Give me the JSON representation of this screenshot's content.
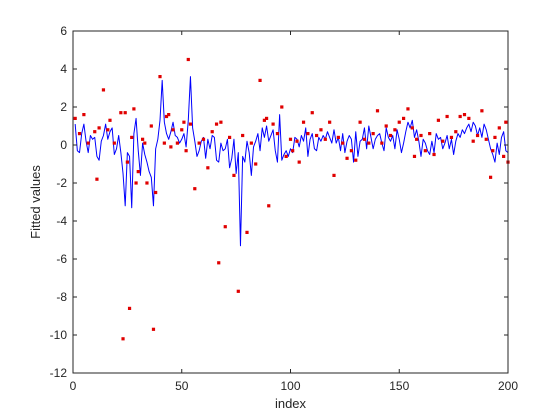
{
  "chart_data": {
    "type": "scatter",
    "xlabel": "index",
    "ylabel": "Fitted values",
    "xlim": [
      0,
      200
    ],
    "ylim": [
      -12,
      6
    ],
    "xticks": [
      0,
      50,
      100,
      150,
      200
    ],
    "yticks": [
      -12,
      -10,
      -8,
      -6,
      -4,
      -2,
      0,
      2,
      4,
      6
    ],
    "xtick_labels": [
      "0",
      "50",
      "100",
      "150",
      "200"
    ],
    "ytick_labels": [
      "-12",
      "-10",
      "-8",
      "-6",
      "-4",
      "-2",
      "0",
      "2",
      "4",
      "6"
    ],
    "grid": false,
    "box": true,
    "series": [
      {
        "style": "line",
        "color": "#0000ff",
        "x": [
          1,
          2,
          3,
          4,
          5,
          6,
          7,
          8,
          9,
          10,
          11,
          12,
          13,
          14,
          15,
          16,
          17,
          18,
          19,
          20,
          21,
          22,
          23,
          24,
          25,
          26,
          27,
          28,
          29,
          30,
          31,
          32,
          33,
          34,
          35,
          36,
          37,
          38,
          39,
          40,
          41,
          42,
          43,
          44,
          45,
          46,
          47,
          48,
          49,
          50,
          51,
          52,
          53,
          54,
          55,
          56,
          57,
          58,
          59,
          60,
          61,
          62,
          63,
          64,
          65,
          66,
          67,
          68,
          69,
          70,
          71,
          72,
          73,
          74,
          75,
          76,
          77,
          78,
          79,
          80,
          81,
          82,
          83,
          84,
          85,
          86,
          87,
          88,
          89,
          90,
          91,
          92,
          93,
          94,
          95,
          96,
          97,
          98,
          99,
          100,
          101,
          102,
          103,
          104,
          105,
          106,
          107,
          108,
          109,
          110,
          111,
          112,
          113,
          114,
          115,
          116,
          117,
          118,
          119,
          120,
          121,
          122,
          123,
          124,
          125,
          126,
          127,
          128,
          129,
          130,
          131,
          132,
          133,
          134,
          135,
          136,
          137,
          138,
          139,
          140,
          141,
          142,
          143,
          144,
          145,
          146,
          147,
          148,
          149,
          150,
          151,
          152,
          153,
          154,
          155,
          156,
          157,
          158,
          159,
          160,
          161,
          162,
          163,
          164,
          165,
          166,
          167,
          168,
          169,
          170,
          171,
          172,
          173,
          174,
          175,
          176,
          177,
          178,
          179,
          180,
          181,
          182,
          183,
          184,
          185,
          186,
          187,
          188,
          189,
          190,
          191,
          192,
          193,
          194,
          195,
          196,
          197,
          198,
          199,
          200
        ],
        "y": [
          1.1,
          -0.3,
          -0.4,
          0.6,
          1.1,
          0.2,
          -0.4,
          0.5,
          0.3,
          0.4,
          -0.6,
          -0.8,
          0.2,
          0.5,
          1.1,
          0.3,
          0.7,
          0.9,
          -0.5,
          -0.2,
          0.5,
          -0.4,
          -1.5,
          -3.2,
          -0.4,
          -0.6,
          -3.3,
          0.6,
          1.4,
          -0.3,
          -1.6,
          0.1,
          -0.5,
          -0.9,
          -1.4,
          -1.7,
          -3.2,
          -0.2,
          0.3,
          1.3,
          3.4,
          1.2,
          0.6,
          0.3,
          0.7,
          1.2,
          0.5,
          0.4,
          0.1,
          0.3,
          0.6,
          -0.1,
          1.3,
          3.6,
          0.9,
          0.2,
          -0.6,
          -0.3,
          0.2,
          0.4,
          -0.7,
          0.3,
          -0.2,
          0.5,
          0.4,
          -0.8,
          -0.9,
          0.1,
          -0.3,
          -0.2,
          0.3,
          -1.2,
          -0.7,
          0.3,
          -1.5,
          -0.4,
          -5.3,
          -0.6,
          -0.9,
          0.2,
          -0.4,
          -1.6,
          -0.1,
          0.2,
          0.6,
          -0.3,
          0.9,
          0.4,
          1.0,
          0.2,
          0.5,
          0.8,
          -0.3,
          -0.9,
          1.6,
          -0.8,
          -0.5,
          -0.3,
          -0.6,
          -0.2,
          -0.4,
          0.4,
          0.3,
          -0.1,
          0.5,
          0.2,
          0.9,
          -0.6,
          0.3,
          0.6,
          -0.2,
          -0.3,
          0.4,
          0.2,
          0.5,
          0.3,
          0.7,
          0.4,
          0.1,
          0.8,
          0.1,
          0.4,
          -0.3,
          0.6,
          -0.4,
          0.2,
          0.5,
          0.3,
          -0.9,
          0.7,
          -0.6,
          0.2,
          0.3,
          0.9,
          -0.2,
          1.0,
          0.4,
          -0.2,
          0.3,
          0.5,
          0.6,
          0.1,
          -0.3,
          0.9,
          0.4,
          0.2,
          0.5,
          -0.2,
          0.8,
          0.3,
          -0.4,
          0.1,
          0.7,
          1.2,
          0.9,
          1.3,
          0.4,
          0.8,
          0.2,
          -0.6,
          0.3,
          0.1,
          -0.3,
          -0.5,
          0.2,
          -0.4,
          0.6,
          0.3,
          0.4,
          -0.2,
          0.1,
          0.5,
          -0.2,
          0.3,
          -0.5,
          0.2,
          0.6,
          0.4,
          0.8,
          0.6,
          0.9,
          1.1,
          0.7,
          1.2,
          1.0,
          0.5,
          0.9,
          0.4,
          1.1,
          0.8,
          0.3,
          -0.2,
          -0.5,
          -0.9,
          0.1,
          -0.5,
          0.4,
          0.7,
          -0.3,
          -0.4
        ],
        "marker": "none"
      },
      {
        "style": "markers",
        "color": "#e00000",
        "marker": "square",
        "x": [
          1,
          3,
          5,
          7,
          10,
          11,
          12,
          14,
          16,
          17,
          19,
          22,
          23,
          24,
          25,
          26,
          27,
          28,
          29,
          30,
          32,
          33,
          34,
          36,
          37,
          38,
          40,
          42,
          43,
          44,
          45,
          46,
          48,
          50,
          51,
          52,
          53,
          54,
          56,
          58,
          60,
          62,
          64,
          66,
          67,
          68,
          70,
          72,
          74,
          76,
          78,
          80,
          82,
          84,
          86,
          88,
          89,
          90,
          92,
          94,
          96,
          98,
          100,
          101,
          103,
          104,
          106,
          108,
          110,
          112,
          114,
          116,
          118,
          120,
          122,
          124,
          126,
          128,
          130,
          132,
          134,
          136,
          138,
          140,
          142,
          144,
          146,
          148,
          150,
          152,
          154,
          156,
          157,
          158,
          160,
          162,
          164,
          166,
          168,
          170,
          172,
          174,
          176,
          178,
          180,
          182,
          184,
          186,
          188,
          190,
          192,
          193,
          194,
          196,
          198,
          199,
          200
        ],
        "y": [
          1.4,
          0.6,
          1.6,
          0.1,
          0.7,
          -1.8,
          0.9,
          2.9,
          0.8,
          1.3,
          0.1,
          1.7,
          -10.2,
          1.7,
          -0.9,
          -8.6,
          0.4,
          1.9,
          -2.0,
          -1.4,
          0.3,
          0.1,
          -2.0,
          1.0,
          -9.7,
          -2.5,
          3.6,
          0.1,
          1.5,
          1.6,
          -0.1,
          0.8,
          0.1,
          0.8,
          1.2,
          -0.3,
          4.5,
          1.1,
          -2.3,
          0.1,
          0.3,
          -1.2,
          0.7,
          1.1,
          -6.2,
          1.2,
          -4.3,
          0.4,
          -1.6,
          -7.7,
          0.5,
          -4.6,
          0.1,
          -1.0,
          3.4,
          1.3,
          1.4,
          -3.2,
          1.1,
          0.6,
          2.0,
          -0.6,
          0.3,
          -0.3,
          0.2,
          -0.9,
          1.2,
          0.6,
          1.7,
          0.5,
          0.8,
          0.3,
          1.2,
          -1.6,
          0.4,
          0.1,
          -0.7,
          -0.3,
          -0.8,
          1.2,
          0.3,
          0.1,
          0.6,
          1.8,
          0.1,
          1.0,
          0.5,
          0.8,
          1.2,
          1.4,
          1.9,
          0.9,
          -0.6,
          0.3,
          0.5,
          -0.3,
          0.6,
          -0.5,
          1.3,
          0.2,
          1.5,
          0.4,
          0.7,
          1.5,
          1.6,
          1.4,
          0.2,
          0.5,
          1.8,
          0.3,
          -1.7,
          -0.3,
          0.4,
          0.9,
          -0.6,
          1.2,
          -0.9
        ]
      }
    ]
  }
}
